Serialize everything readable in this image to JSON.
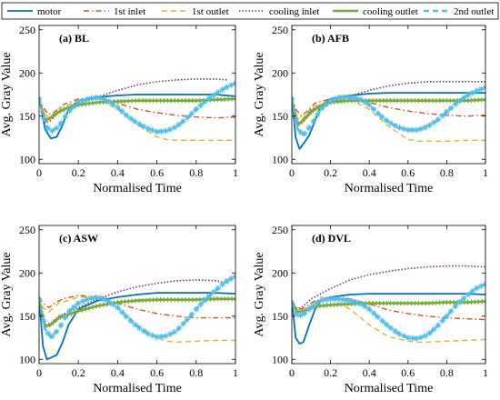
{
  "legend": [
    {
      "name": "motor",
      "color": "#0072BD",
      "style": "solid"
    },
    {
      "name": "1st inlet",
      "color": "#D95319",
      "style": "dashdot"
    },
    {
      "name": "1st outlet",
      "color": "#EDB120",
      "style": "dashed"
    },
    {
      "name": "cooling inlet",
      "color": "#7E2F8E",
      "style": "dotted"
    },
    {
      "name": "cooling outlet",
      "color": "#77AC30",
      "style": "plus"
    },
    {
      "name": "2nd outlet",
      "color": "#4DBEEE",
      "style": "dashed-star"
    }
  ],
  "chart_data": [
    {
      "type": "line",
      "title": "(a) BL",
      "xlabel": "Normalised Time",
      "ylabel": "Avg. Gray Value",
      "xlim": [
        0,
        1
      ],
      "ylim": [
        95,
        255
      ],
      "xticks": [
        "0",
        "0.2",
        "0.4",
        "0.6",
        "0.8",
        "1"
      ],
      "yticks": [
        "100",
        "150",
        "200",
        "250"
      ],
      "grid": false,
      "series": [
        {
          "name": "motor",
          "x": [
            0,
            0.03,
            0.06,
            0.09,
            0.12,
            0.15,
            0.2,
            0.3,
            0.4,
            0.5,
            0.6,
            0.7,
            0.8,
            0.9,
            1.0
          ],
          "y": [
            172,
            135,
            124,
            126,
            140,
            158,
            168,
            172,
            174,
            175,
            175,
            175,
            175,
            175,
            173
          ]
        },
        {
          "name": "1st inlet",
          "x": [
            0,
            0.02,
            0.05,
            0.08,
            0.12,
            0.2,
            0.3,
            0.4,
            0.5,
            0.6,
            0.7,
            0.8,
            0.9,
            1.0
          ],
          "y": [
            172,
            160,
            152,
            155,
            163,
            170,
            172,
            165,
            158,
            154,
            151,
            149,
            148,
            149
          ]
        },
        {
          "name": "1st outlet",
          "x": [
            0,
            0.02,
            0.05,
            0.1,
            0.2,
            0.3,
            0.4,
            0.5,
            0.6,
            0.65,
            0.7,
            0.8,
            0.9,
            1.0
          ],
          "y": [
            172,
            155,
            148,
            158,
            168,
            170,
            158,
            140,
            126,
            123,
            122,
            122,
            122,
            122
          ]
        },
        {
          "name": "cooling inlet",
          "x": [
            0,
            0.03,
            0.06,
            0.1,
            0.2,
            0.3,
            0.4,
            0.5,
            0.6,
            0.7,
            0.8,
            0.9,
            0.96
          ],
          "y": [
            172,
            142,
            145,
            155,
            165,
            172,
            180,
            186,
            190,
            192,
            193,
            193,
            192
          ]
        },
        {
          "name": "cooling outlet",
          "x": [
            0,
            0.03,
            0.06,
            0.1,
            0.15,
            0.2,
            0.3,
            0.4,
            0.5,
            0.6,
            0.7,
            0.8,
            0.9,
            1.0
          ],
          "y": [
            170,
            145,
            148,
            155,
            160,
            163,
            166,
            167,
            168,
            168,
            168,
            168,
            169,
            170
          ]
        },
        {
          "name": "2nd outlet",
          "x": [
            0,
            0.03,
            0.06,
            0.1,
            0.15,
            0.2,
            0.25,
            0.3,
            0.35,
            0.4,
            0.45,
            0.5,
            0.55,
            0.6,
            0.65,
            0.7,
            0.75,
            0.8,
            0.85,
            0.9,
            0.95,
            1.0
          ],
          "y": [
            170,
            140,
            132,
            138,
            155,
            166,
            170,
            172,
            168,
            160,
            150,
            142,
            136,
            132,
            133,
            138,
            147,
            158,
            168,
            176,
            183,
            188
          ]
        }
      ]
    },
    {
      "type": "line",
      "title": "(b) AFB",
      "xlabel": "Normalised Time",
      "ylabel": "Avg. Gray Value",
      "xlim": [
        0,
        1
      ],
      "ylim": [
        95,
        255
      ],
      "xticks": [
        "0",
        "0.2",
        "0.4",
        "0.6",
        "0.8",
        "1"
      ],
      "yticks": [
        "100",
        "150",
        "200",
        "250"
      ],
      "grid": false,
      "series": [
        {
          "name": "motor",
          "x": [
            0,
            0.02,
            0.04,
            0.06,
            0.09,
            0.12,
            0.15,
            0.2,
            0.3,
            0.4,
            0.5,
            0.6,
            0.7,
            0.8,
            0.9,
            1.0
          ],
          "y": [
            172,
            125,
            112,
            118,
            128,
            145,
            162,
            170,
            174,
            176,
            177,
            177,
            177,
            177,
            177,
            177
          ]
        },
        {
          "name": "1st inlet",
          "x": [
            0,
            0.02,
            0.05,
            0.08,
            0.12,
            0.2,
            0.3,
            0.4,
            0.5,
            0.6,
            0.7,
            0.8,
            0.9,
            1.0
          ],
          "y": [
            172,
            158,
            150,
            156,
            165,
            170,
            172,
            166,
            160,
            156,
            153,
            151,
            150,
            151
          ]
        },
        {
          "name": "1st outlet",
          "x": [
            0,
            0.02,
            0.05,
            0.1,
            0.2,
            0.3,
            0.4,
            0.5,
            0.6,
            0.65,
            0.7,
            0.8,
            0.9,
            1.0
          ],
          "y": [
            172,
            150,
            145,
            160,
            168,
            170,
            158,
            138,
            123,
            121,
            121,
            121,
            122,
            122
          ]
        },
        {
          "name": "cooling inlet",
          "x": [
            0,
            0.03,
            0.06,
            0.1,
            0.2,
            0.3,
            0.4,
            0.5,
            0.6,
            0.7,
            0.8,
            0.9,
            1.0
          ],
          "y": [
            172,
            140,
            145,
            158,
            167,
            173,
            180,
            185,
            188,
            190,
            190,
            190,
            190
          ]
        },
        {
          "name": "cooling outlet",
          "x": [
            0,
            0.03,
            0.06,
            0.1,
            0.15,
            0.2,
            0.3,
            0.4,
            0.5,
            0.6,
            0.7,
            0.8,
            0.9,
            1.0
          ],
          "y": [
            170,
            140,
            145,
            155,
            162,
            166,
            168,
            168,
            168,
            168,
            168,
            168,
            168,
            169
          ]
        },
        {
          "name": "2nd outlet",
          "x": [
            0,
            0.03,
            0.06,
            0.1,
            0.15,
            0.2,
            0.25,
            0.3,
            0.35,
            0.4,
            0.45,
            0.5,
            0.55,
            0.6,
            0.65,
            0.7,
            0.75,
            0.8,
            0.85,
            0.9,
            0.95,
            1.0
          ],
          "y": [
            170,
            135,
            128,
            140,
            158,
            168,
            172,
            172,
            170,
            163,
            152,
            143,
            137,
            134,
            134,
            138,
            145,
            155,
            165,
            173,
            179,
            183
          ]
        }
      ]
    },
    {
      "type": "line",
      "title": "(c) ASW",
      "xlabel": "Normalised Time",
      "ylabel": "Avg. Gray Value",
      "xlim": [
        0,
        1
      ],
      "ylim": [
        95,
        255
      ],
      "xticks": [
        "0",
        "0.2",
        "0.4",
        "0.6",
        "0.8",
        "1"
      ],
      "yticks": [
        "100",
        "150",
        "200",
        "250"
      ],
      "grid": false,
      "series": [
        {
          "name": "motor",
          "x": [
            0,
            0.02,
            0.04,
            0.06,
            0.09,
            0.12,
            0.15,
            0.2,
            0.3,
            0.4,
            0.5,
            0.6,
            0.7,
            0.8,
            0.9,
            1.0
          ],
          "y": [
            172,
            115,
            100,
            102,
            105,
            120,
            140,
            158,
            168,
            172,
            175,
            177,
            177,
            177,
            177,
            176
          ]
        },
        {
          "name": "1st inlet",
          "x": [
            0,
            0.02,
            0.05,
            0.08,
            0.12,
            0.2,
            0.3,
            0.4,
            0.5,
            0.6,
            0.7,
            0.8,
            0.9,
            1.0
          ],
          "y": [
            172,
            165,
            160,
            165,
            170,
            174,
            172,
            165,
            158,
            153,
            150,
            148,
            148,
            148
          ]
        },
        {
          "name": "1st outlet",
          "x": [
            0,
            0.02,
            0.05,
            0.1,
            0.2,
            0.3,
            0.4,
            0.5,
            0.6,
            0.65,
            0.7,
            0.8,
            0.9,
            1.0
          ],
          "y": [
            172,
            160,
            155,
            165,
            172,
            172,
            160,
            140,
            125,
            121,
            120,
            121,
            122,
            122
          ]
        },
        {
          "name": "cooling inlet",
          "x": [
            0,
            0.03,
            0.06,
            0.1,
            0.2,
            0.3,
            0.4,
            0.5,
            0.6,
            0.7,
            0.8,
            0.9,
            0.96
          ],
          "y": [
            172,
            140,
            142,
            150,
            160,
            170,
            178,
            184,
            188,
            191,
            192,
            191,
            188
          ]
        },
        {
          "name": "cooling outlet",
          "x": [
            0,
            0.03,
            0.06,
            0.1,
            0.15,
            0.2,
            0.3,
            0.4,
            0.5,
            0.6,
            0.7,
            0.8,
            0.9,
            1.0
          ],
          "y": [
            170,
            138,
            140,
            148,
            152,
            156,
            162,
            166,
            168,
            169,
            169,
            169,
            170,
            170
          ]
        },
        {
          "name": "2nd outlet",
          "x": [
            0,
            0.03,
            0.06,
            0.1,
            0.15,
            0.2,
            0.25,
            0.3,
            0.35,
            0.4,
            0.45,
            0.5,
            0.55,
            0.6,
            0.65,
            0.7,
            0.75,
            0.8,
            0.85,
            0.9,
            0.95,
            1.0
          ],
          "y": [
            170,
            135,
            125,
            135,
            155,
            165,
            170,
            172,
            168,
            160,
            148,
            138,
            130,
            126,
            127,
            133,
            145,
            158,
            170,
            180,
            190,
            196
          ]
        }
      ]
    },
    {
      "type": "line",
      "title": "(d) DVL",
      "xlabel": "Normalised Time",
      "ylabel": "Avg. Gray Value",
      "xlim": [
        0,
        1
      ],
      "ylim": [
        95,
        255
      ],
      "xticks": [
        "0",
        "0.2",
        "0.4",
        "0.6",
        "0.8",
        "1"
      ],
      "yticks": [
        "100",
        "150",
        "200",
        "250"
      ],
      "grid": false,
      "series": [
        {
          "name": "motor",
          "x": [
            0,
            0.02,
            0.04,
            0.06,
            0.09,
            0.12,
            0.15,
            0.2,
            0.3,
            0.4,
            0.5,
            0.6,
            0.7,
            0.8,
            0.9,
            1.0
          ],
          "y": [
            168,
            125,
            118,
            120,
            140,
            158,
            168,
            172,
            175,
            176,
            176,
            176,
            176,
            176,
            176,
            175
          ]
        },
        {
          "name": "1st inlet",
          "x": [
            0,
            0.02,
            0.05,
            0.08,
            0.12,
            0.2,
            0.3,
            0.4,
            0.5,
            0.6,
            0.7,
            0.8,
            0.9,
            1.0
          ],
          "y": [
            168,
            160,
            158,
            162,
            168,
            170,
            170,
            164,
            157,
            153,
            150,
            148,
            147,
            146
          ]
        },
        {
          "name": "1st outlet",
          "x": [
            0,
            0.02,
            0.05,
            0.1,
            0.15,
            0.2,
            0.3,
            0.4,
            0.5,
            0.6,
            0.65,
            0.7,
            0.8,
            0.9,
            1.0
          ],
          "y": [
            168,
            155,
            150,
            162,
            172,
            170,
            158,
            140,
            126,
            121,
            120,
            120,
            121,
            122,
            123
          ]
        },
        {
          "name": "cooling inlet",
          "x": [
            0,
            0.02,
            0.05,
            0.1,
            0.2,
            0.3,
            0.4,
            0.5,
            0.6,
            0.7,
            0.8,
            0.9,
            1.0
          ],
          "y": [
            168,
            158,
            160,
            170,
            182,
            192,
            198,
            202,
            205,
            207,
            208,
            208,
            207
          ]
        },
        {
          "name": "cooling outlet",
          "x": [
            0,
            0.03,
            0.06,
            0.1,
            0.15,
            0.2,
            0.3,
            0.4,
            0.5,
            0.6,
            0.7,
            0.8,
            0.9,
            1.0
          ],
          "y": [
            165,
            155,
            156,
            160,
            162,
            163,
            164,
            165,
            165,
            165,
            165,
            166,
            166,
            167
          ]
        },
        {
          "name": "2nd outlet",
          "x": [
            0,
            0.03,
            0.06,
            0.1,
            0.15,
            0.2,
            0.25,
            0.3,
            0.35,
            0.4,
            0.45,
            0.5,
            0.55,
            0.6,
            0.65,
            0.7,
            0.75,
            0.8,
            0.85,
            0.9,
            0.95,
            1.0
          ],
          "y": [
            165,
            150,
            152,
            160,
            168,
            170,
            170,
            168,
            165,
            158,
            148,
            138,
            130,
            125,
            124,
            128,
            138,
            150,
            163,
            173,
            182,
            187
          ]
        }
      ]
    }
  ]
}
